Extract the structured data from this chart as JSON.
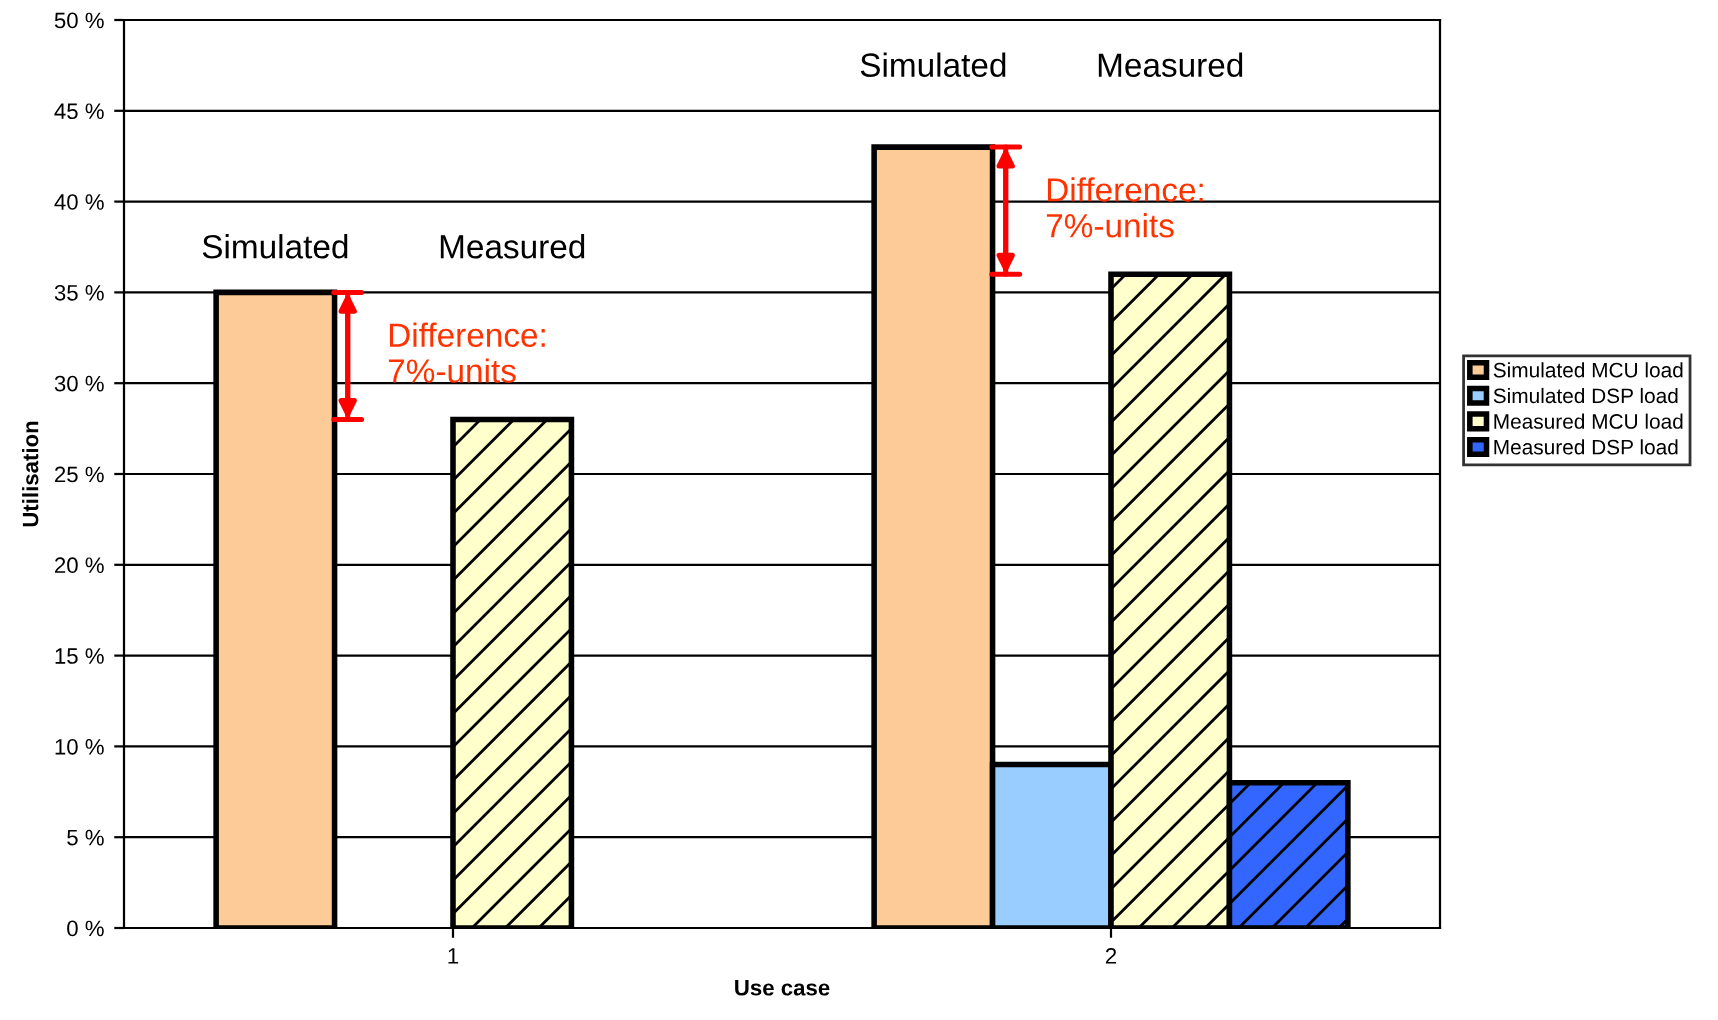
{
  "chart_data": {
    "type": "bar",
    "xlabel": "Use case",
    "ylabel": "Utilisation",
    "categories": [
      "1",
      "2"
    ],
    "series": [
      {
        "name": "Simulated MCU load",
        "color": "#fccb97",
        "values": [
          35,
          43
        ]
      },
      {
        "name": "Simulated DSP load",
        "color": "#99ccff",
        "values": [
          null,
          9
        ]
      },
      {
        "name": "Measured MCU load",
        "color": "#ffffcc",
        "values": [
          28,
          36
        ]
      },
      {
        "name": "Measured DSP load",
        "color": "#3366ff",
        "values": [
          null,
          8
        ]
      }
    ],
    "ylim": [
      0,
      50
    ],
    "yticks": [
      {
        "value": 0,
        "label": "0 %"
      },
      {
        "value": 5,
        "label": "5 %"
      },
      {
        "value": 10,
        "label": "10 %"
      },
      {
        "value": 15,
        "label": "15 %"
      },
      {
        "value": 20,
        "label": "20 %"
      },
      {
        "value": 25,
        "label": "25 %"
      },
      {
        "value": 30,
        "label": "30 %"
      },
      {
        "value": 35,
        "label": "35 %"
      },
      {
        "value": 40,
        "label": "40 %"
      },
      {
        "value": 45,
        "label": "45 %"
      },
      {
        "value": 50,
        "label": "50 %"
      }
    ],
    "grid": "y",
    "legend": "right",
    "annotations": [
      "Simulated",
      "Measured",
      "Difference:\n7%-units",
      "Simulated",
      "Measured",
      "Difference:\n7%-units"
    ]
  }
}
